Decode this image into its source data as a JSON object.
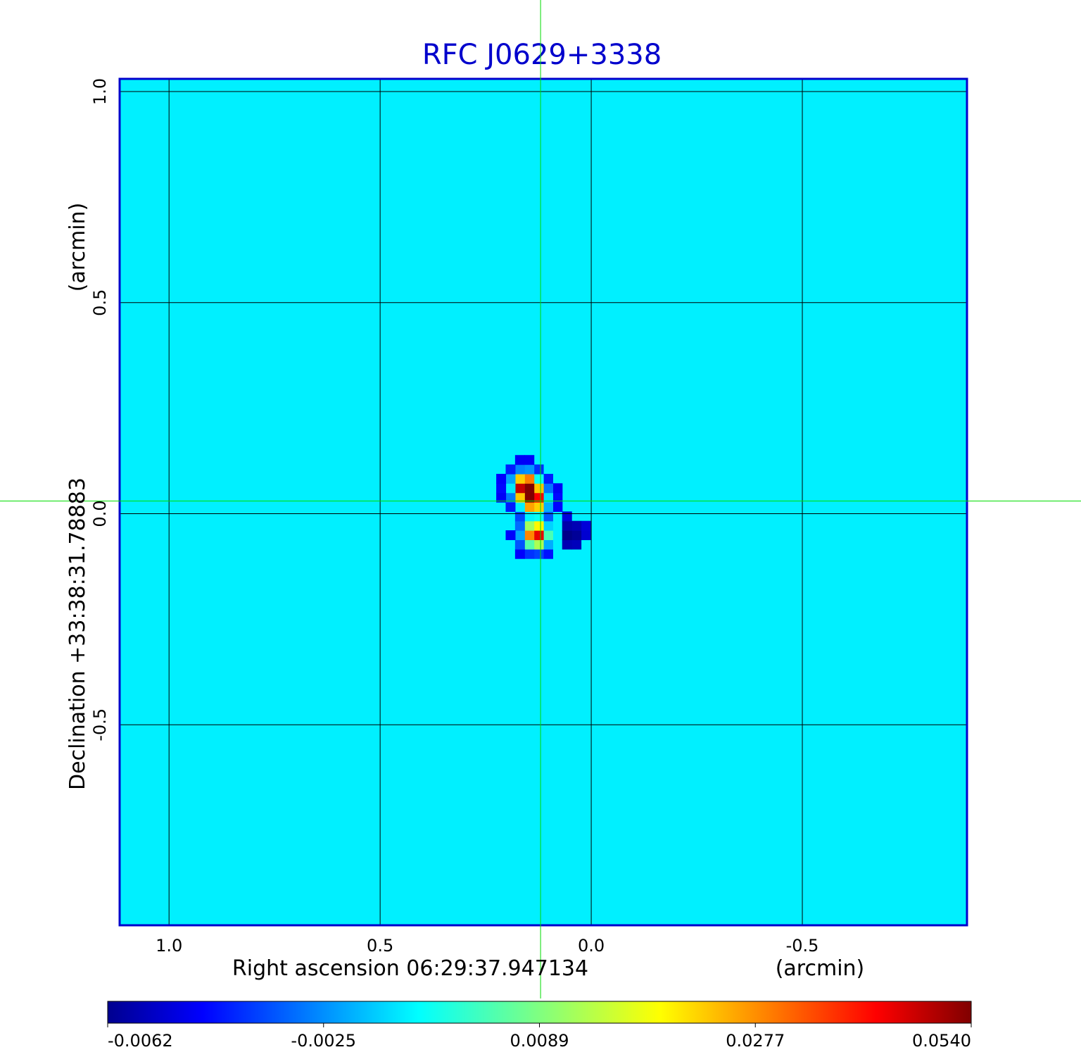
{
  "chart_data": {
    "type": "heatmap",
    "title": "RFC J0629+3338",
    "xlabel": "Right ascension  06:29:37.947134",
    "xunit": "(arcmin)",
    "ylabel": "Declination  +33:38:31.78883",
    "yunit": "(arcmin)",
    "x_ticks": [
      "1.0",
      "0.5",
      "0.0",
      "-0.5"
    ],
    "x_tick_values": [
      1.0,
      0.5,
      0.0,
      -0.5
    ],
    "y_ticks": [
      "1.0",
      "0.5",
      "0.0",
      "-0.5"
    ],
    "y_tick_values": [
      1.0,
      0.5,
      0.0,
      -0.5
    ],
    "xlim": [
      1.117,
      -0.89
    ],
    "ylim": [
      -0.975,
      1.03
    ],
    "grid": true,
    "crosshair": [
      0.12,
      0.03
    ],
    "colorbar": {
      "ticks": [
        "-0.0062",
        "-0.0025",
        "0.0089",
        "0.0277",
        "0.0540"
      ],
      "tick_values": [
        -0.0062,
        -0.0025,
        0.0089,
        0.0277,
        0.054
      ],
      "range": [
        -0.0062,
        0.054
      ],
      "colormap": "jet"
    },
    "background_level": 0.0,
    "sources": [
      {
        "x": 0.145,
        "y": 0.055,
        "peak": 0.054
      },
      {
        "x": 0.125,
        "y": 0.02,
        "peak": 0.046
      },
      {
        "x": 0.12,
        "y": -0.06,
        "peak": 0.05
      },
      {
        "x": 0.04,
        "y": -0.06,
        "peak": -0.0062
      }
    ]
  },
  "colors": {
    "frame": "#0000cc",
    "grid": "#000000",
    "crosshair": "#00dd00",
    "background_cyan": "#00ffff"
  }
}
